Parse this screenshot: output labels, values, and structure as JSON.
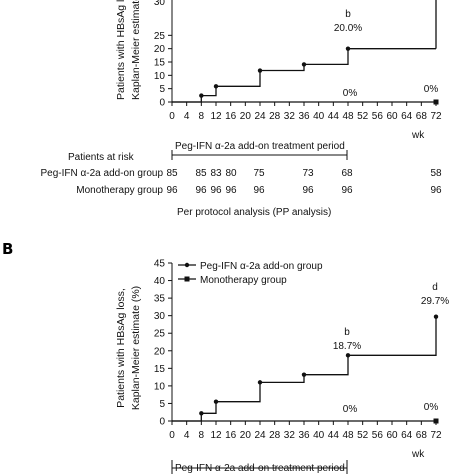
{
  "panel_a": {
    "ylabel_lines": [
      "Patients with HBsAg lo",
      "Kaplan-Meier estimate"
    ],
    "y_top_tick_partial": "30",
    "wk_label": "wk",
    "treatment_period_label": "Peg-IFN α-2a add-on treatment period",
    "annotation_letter": "b",
    "annotation_value": "20.0%",
    "mono_end_labels": [
      "0%",
      "0%"
    ],
    "patients_at_risk": {
      "title": "Patients at risk",
      "groups": [
        {
          "name": "Peg-IFN α-2a add-on group",
          "values": [
            "85",
            "85",
            "83",
            "80",
            "75",
            "73",
            "68",
            "58"
          ]
        },
        {
          "name": "Monotherapy group",
          "values": [
            "96",
            "96",
            "96",
            "96",
            "96",
            "96",
            "96",
            "96"
          ]
        }
      ],
      "at_weeks": [
        0,
        8,
        12,
        16,
        24,
        36,
        48,
        72
      ]
    },
    "footnote": "Per protocol analysis (PP analysis)"
  },
  "panel_b": {
    "panel_label": "B",
    "ylabel_lines": [
      "Patients with HBsAg loss,",
      "Kaplan-Meier estimate (%)"
    ],
    "wk_label": "wk",
    "treatment_period_label": "Peg-IFN α-2a add-on treatment period",
    "annotations": [
      {
        "letter": "b",
        "value": "18.7%"
      },
      {
        "letter": "d",
        "value": "29.7%"
      }
    ],
    "mono_end_labels": [
      "0%",
      "0%"
    ]
  },
  "chart_data": [
    {
      "type": "line",
      "title": "",
      "x_ticks": [
        0,
        4,
        8,
        12,
        16,
        20,
        24,
        28,
        32,
        36,
        40,
        44,
        48,
        52,
        56,
        60,
        64,
        68,
        72
      ],
      "y_ticks": [
        0,
        5,
        10,
        15,
        20,
        25
      ],
      "xlim": [
        0,
        72
      ],
      "ylim": [
        0,
        30
      ],
      "series": [
        {
          "name": "Peg-IFN α-2a add-on group",
          "step": true,
          "x": [
            0,
            8,
            8,
            12,
            12,
            24,
            24,
            36,
            36,
            48,
            48,
            72
          ],
          "y": [
            0,
            0,
            2.4,
            2.4,
            5.9,
            5.9,
            11.8,
            11.8,
            14.1,
            14.1,
            20.0,
            20.0
          ]
        },
        {
          "name": "Monotherapy group",
          "step": true,
          "x": [
            0,
            72
          ],
          "y": [
            0,
            0
          ]
        }
      ]
    },
    {
      "type": "line",
      "title": "",
      "ylabel": "Patients with HBsAg loss, Kaplan-Meier estimate (%)",
      "x_ticks": [
        0,
        4,
        8,
        12,
        16,
        20,
        24,
        28,
        32,
        36,
        40,
        44,
        48,
        52,
        56,
        60,
        64,
        68,
        72
      ],
      "y_ticks": [
        0,
        5,
        10,
        15,
        20,
        25,
        30,
        35,
        40,
        45
      ],
      "xlim": [
        0,
        72
      ],
      "ylim": [
        0,
        45
      ],
      "legend": "top-left",
      "series": [
        {
          "name": "Peg-IFN α-2a add-on group",
          "step": true,
          "x": [
            0,
            8,
            8,
            12,
            12,
            24,
            24,
            36,
            36,
            48,
            48,
            72,
            72
          ],
          "y": [
            0,
            0,
            2.2,
            2.2,
            5.5,
            5.5,
            11.0,
            11.0,
            13.2,
            13.2,
            18.7,
            18.7,
            29.7
          ]
        },
        {
          "name": "Monotherapy group",
          "step": true,
          "x": [
            0,
            72
          ],
          "y": [
            0,
            0
          ]
        }
      ]
    }
  ]
}
